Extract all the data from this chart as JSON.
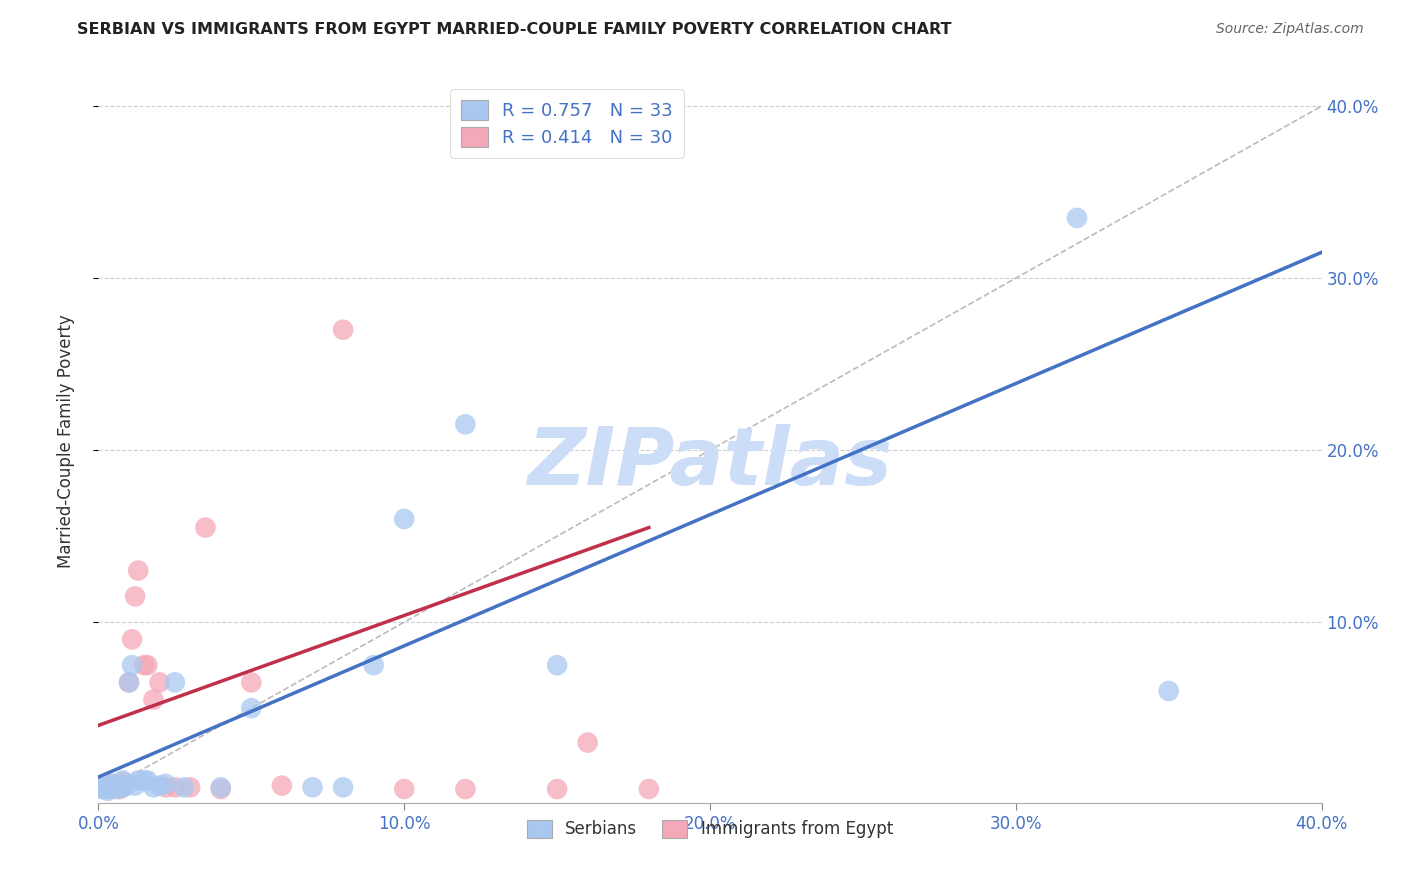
{
  "title": "SERBIAN VS IMMIGRANTS FROM EGYPT MARRIED-COUPLE FAMILY POVERTY CORRELATION CHART",
  "source": "Source: ZipAtlas.com",
  "ylabel": "Married-Couple Family Poverty",
  "xlim": [
    0.0,
    0.4
  ],
  "ylim": [
    -0.005,
    0.415
  ],
  "xtick_vals": [
    0.0,
    0.1,
    0.2,
    0.3,
    0.4
  ],
  "ytick_vals": [
    0.1,
    0.2,
    0.3,
    0.4
  ],
  "serbian_color": "#a8c8f0",
  "egypt_color": "#f5a8b8",
  "serbian_line_color": "#4472c4",
  "egypt_line_color": "#c0304a",
  "diagonal_color": "#bbbbbb",
  "watermark_color": "#ccddf8",
  "legend_serbian_R": "0.757",
  "legend_serbian_N": "33",
  "legend_egypt_R": "0.414",
  "legend_egypt_N": "30",
  "serbian_x": [
    0.001,
    0.002,
    0.003,
    0.003,
    0.004,
    0.005,
    0.005,
    0.006,
    0.007,
    0.008,
    0.008,
    0.009,
    0.01,
    0.011,
    0.012,
    0.013,
    0.015,
    0.016,
    0.018,
    0.02,
    0.022,
    0.025,
    0.028,
    0.04,
    0.05,
    0.07,
    0.08,
    0.09,
    0.1,
    0.12,
    0.15,
    0.32,
    0.35
  ],
  "serbian_y": [
    0.003,
    0.004,
    0.002,
    0.005,
    0.003,
    0.004,
    0.006,
    0.003,
    0.005,
    0.004,
    0.008,
    0.005,
    0.065,
    0.075,
    0.005,
    0.008,
    0.008,
    0.008,
    0.004,
    0.005,
    0.006,
    0.065,
    0.004,
    0.004,
    0.05,
    0.004,
    0.004,
    0.075,
    0.16,
    0.215,
    0.075,
    0.335,
    0.06
  ],
  "egypt_x": [
    0.001,
    0.002,
    0.003,
    0.004,
    0.005,
    0.006,
    0.007,
    0.008,
    0.009,
    0.01,
    0.011,
    0.012,
    0.013,
    0.015,
    0.016,
    0.018,
    0.02,
    0.022,
    0.025,
    0.03,
    0.035,
    0.04,
    0.05,
    0.06,
    0.08,
    0.1,
    0.12,
    0.15,
    0.16,
    0.18
  ],
  "egypt_y": [
    0.004,
    0.005,
    0.003,
    0.006,
    0.005,
    0.004,
    0.003,
    0.007,
    0.005,
    0.065,
    0.09,
    0.115,
    0.13,
    0.075,
    0.075,
    0.055,
    0.065,
    0.004,
    0.004,
    0.004,
    0.155,
    0.003,
    0.065,
    0.005,
    0.27,
    0.003,
    0.003,
    0.003,
    0.03,
    0.003
  ]
}
